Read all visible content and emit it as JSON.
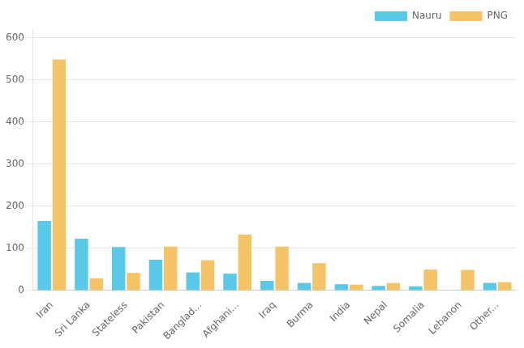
{
  "chart_data": {
    "type": "bar",
    "categories": [
      "Iran",
      "Sri Lanka",
      "Stateless",
      "Pakistan",
      "Banglad...",
      "Afghani...",
      "Iraq",
      "Burma",
      "India",
      "Nepal",
      "Somalia",
      "Lebanon",
      "Other..."
    ],
    "series": [
      {
        "name": "Nauru",
        "color": "#5BC8E8",
        "values": [
          165,
          123,
          103,
          73,
          43,
          40,
          23,
          18,
          15,
          11,
          10,
          0,
          18
        ]
      },
      {
        "name": "PNG",
        "color": "#F5C469",
        "values": [
          548,
          29,
          42,
          104,
          72,
          133,
          104,
          65,
          14,
          18,
          50,
          49,
          20
        ]
      }
    ],
    "ylim": [
      0,
      620
    ],
    "yticks": [
      0,
      100,
      200,
      300,
      400,
      500,
      600
    ],
    "grid": true,
    "legend": "upper right"
  }
}
